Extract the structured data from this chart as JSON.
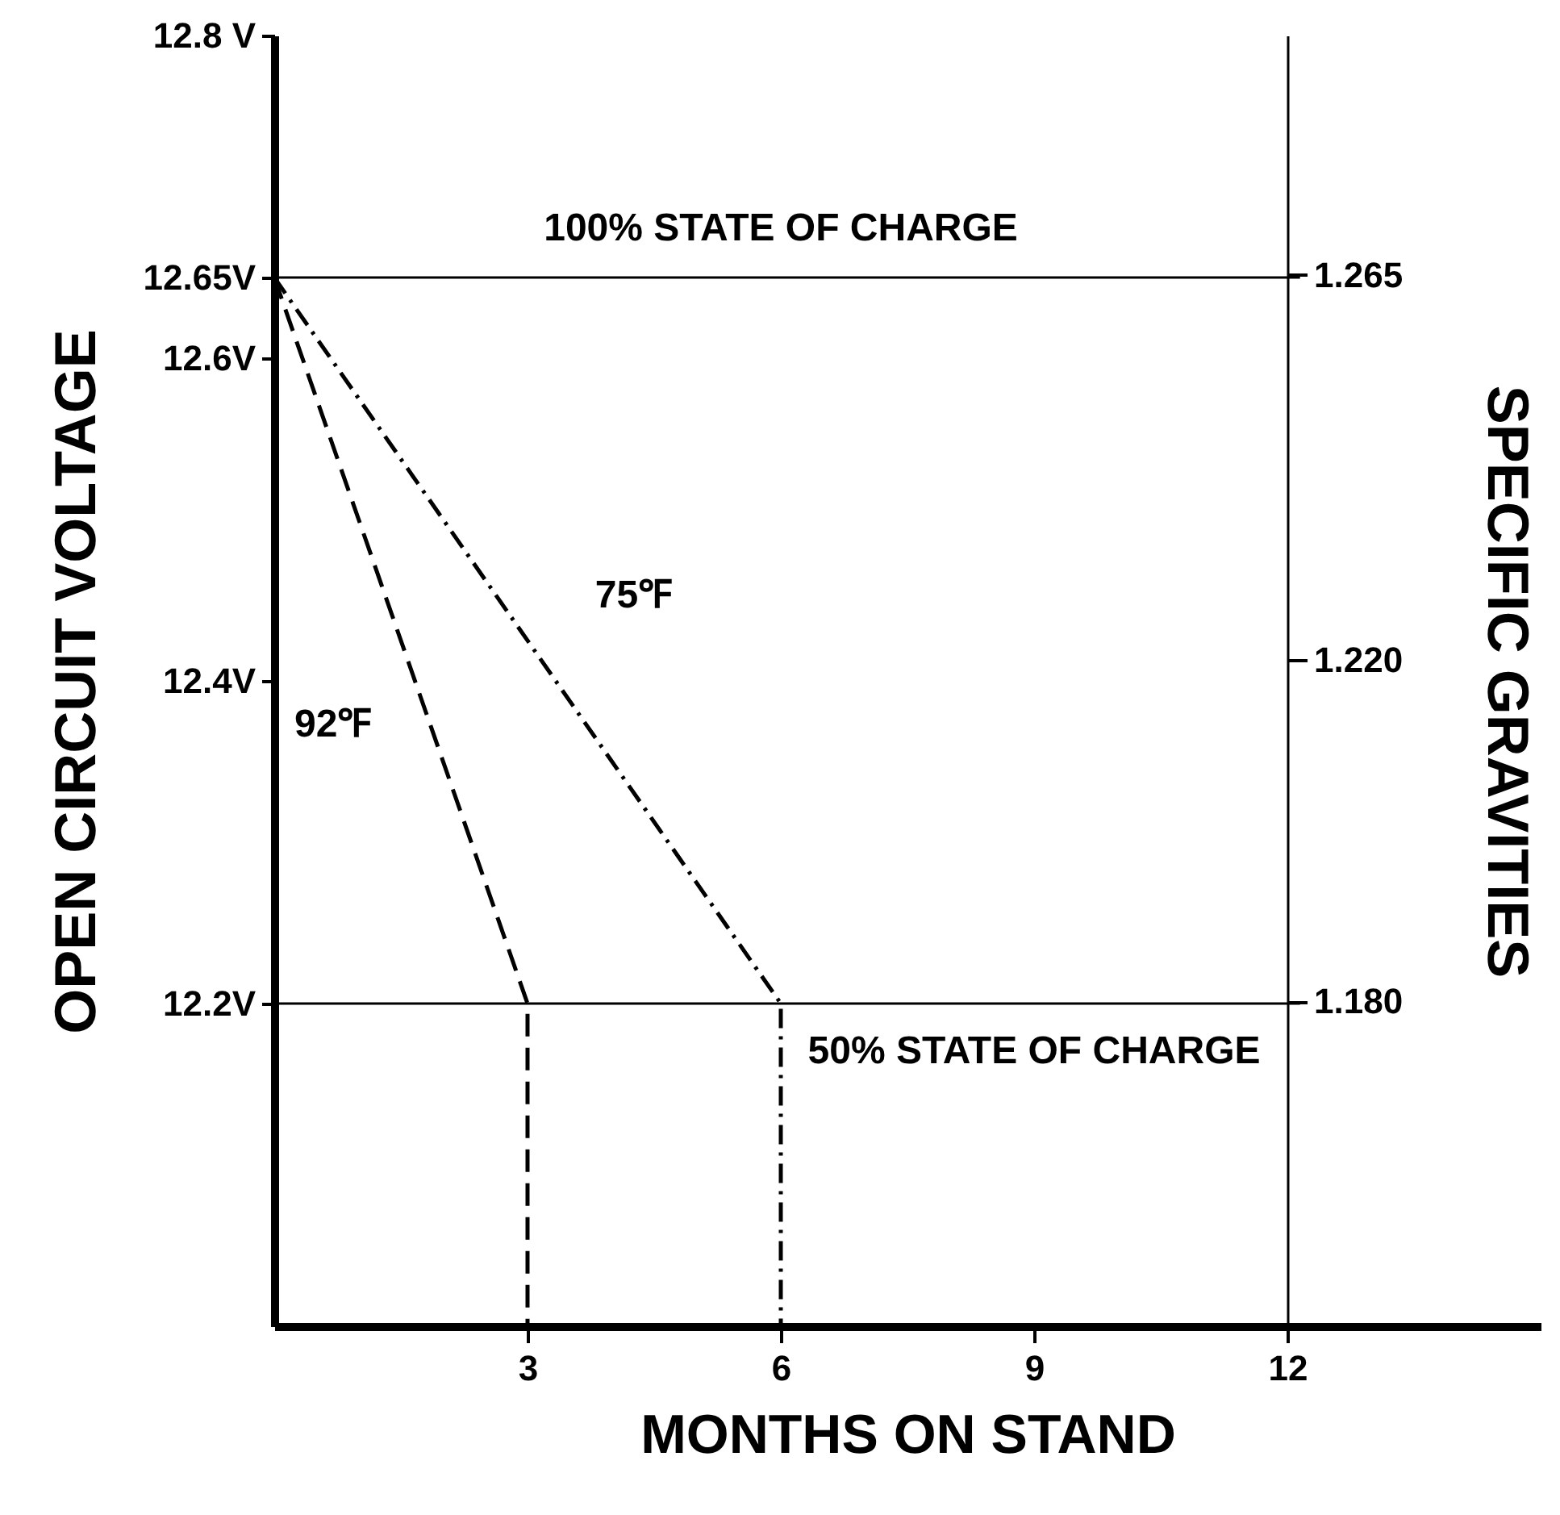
{
  "chart_data": {
    "type": "line",
    "xlabel": "MONTHS ON STAND",
    "ylabel": "OPEN CIRCUIT VOLTAGE",
    "y2label": "SPECIFIC GRAVITIES",
    "xlim": [
      0,
      15
    ],
    "xticks": [
      3,
      6,
      9,
      12
    ],
    "ylim": [
      12.0,
      12.8
    ],
    "yticks": [
      {
        "value": 12.8,
        "label": "12.8 V"
      },
      {
        "value": 12.65,
        "label": "12.65V"
      },
      {
        "value": 12.6,
        "label": "12.6V"
      },
      {
        "value": 12.4,
        "label": "12.4V"
      },
      {
        "value": 12.2,
        "label": "12.2V"
      }
    ],
    "y2lim": [
      1.142,
      1.293
    ],
    "y2ticks": [
      {
        "value": 1.265,
        "label": "1.265"
      },
      {
        "value": 1.22,
        "label": "1.220"
      },
      {
        "value": 1.18,
        "label": "1.180"
      }
    ],
    "series": [
      {
        "name": "92℉",
        "color": "#000000",
        "line_style": "dashed",
        "x": [
          0,
          3,
          3
        ],
        "values": [
          12.65,
          12.2,
          12.0
        ]
      },
      {
        "name": "75℉",
        "color": "#000000",
        "line_style": "dotted",
        "x": [
          0,
          6,
          6
        ],
        "values": [
          12.65,
          12.2,
          12.0
        ]
      }
    ],
    "ref_lines": [
      {
        "axis": "y",
        "value": 12.65,
        "label": "100% STATE OF CHARGE"
      },
      {
        "axis": "y",
        "value": 12.2,
        "label": "50% STATE OF CHARGE"
      }
    ],
    "grid": false
  }
}
